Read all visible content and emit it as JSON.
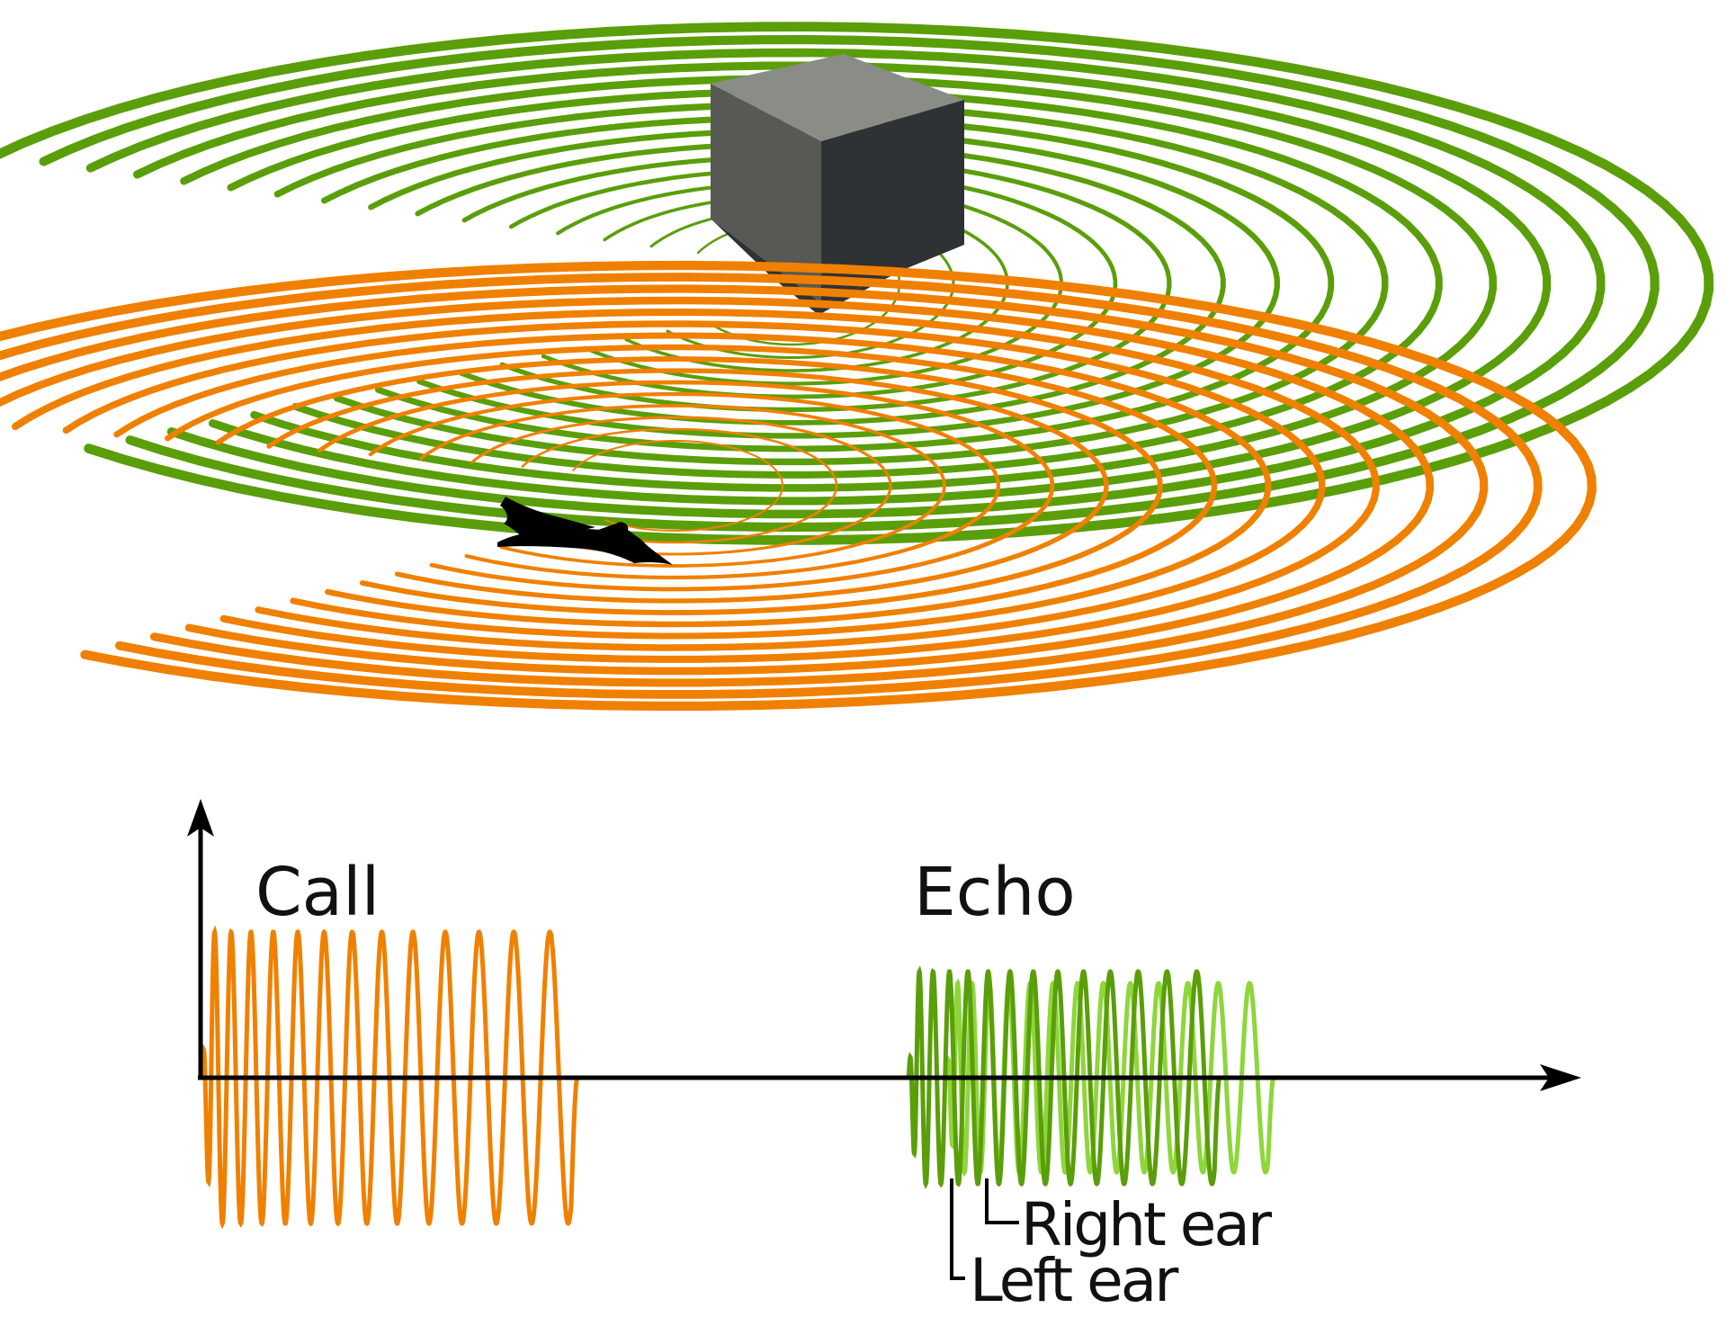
{
  "labels": {
    "call": "Call",
    "echo": "Echo",
    "right_ear": "Right ear",
    "left_ear": "Left ear"
  },
  "colors": {
    "call": "#f08000",
    "echo": "#5a9e0a",
    "echo_right": "#8ed63c",
    "axis": "#000000",
    "cube_top": "#8a8c86",
    "cube_left": "#575954",
    "cube_right": "#2e3234",
    "bat": "#000000",
    "background": "#ffffff"
  },
  "icons": {
    "object": "cube-obstacle-icon",
    "bat": "bat-silhouette-icon"
  }
}
